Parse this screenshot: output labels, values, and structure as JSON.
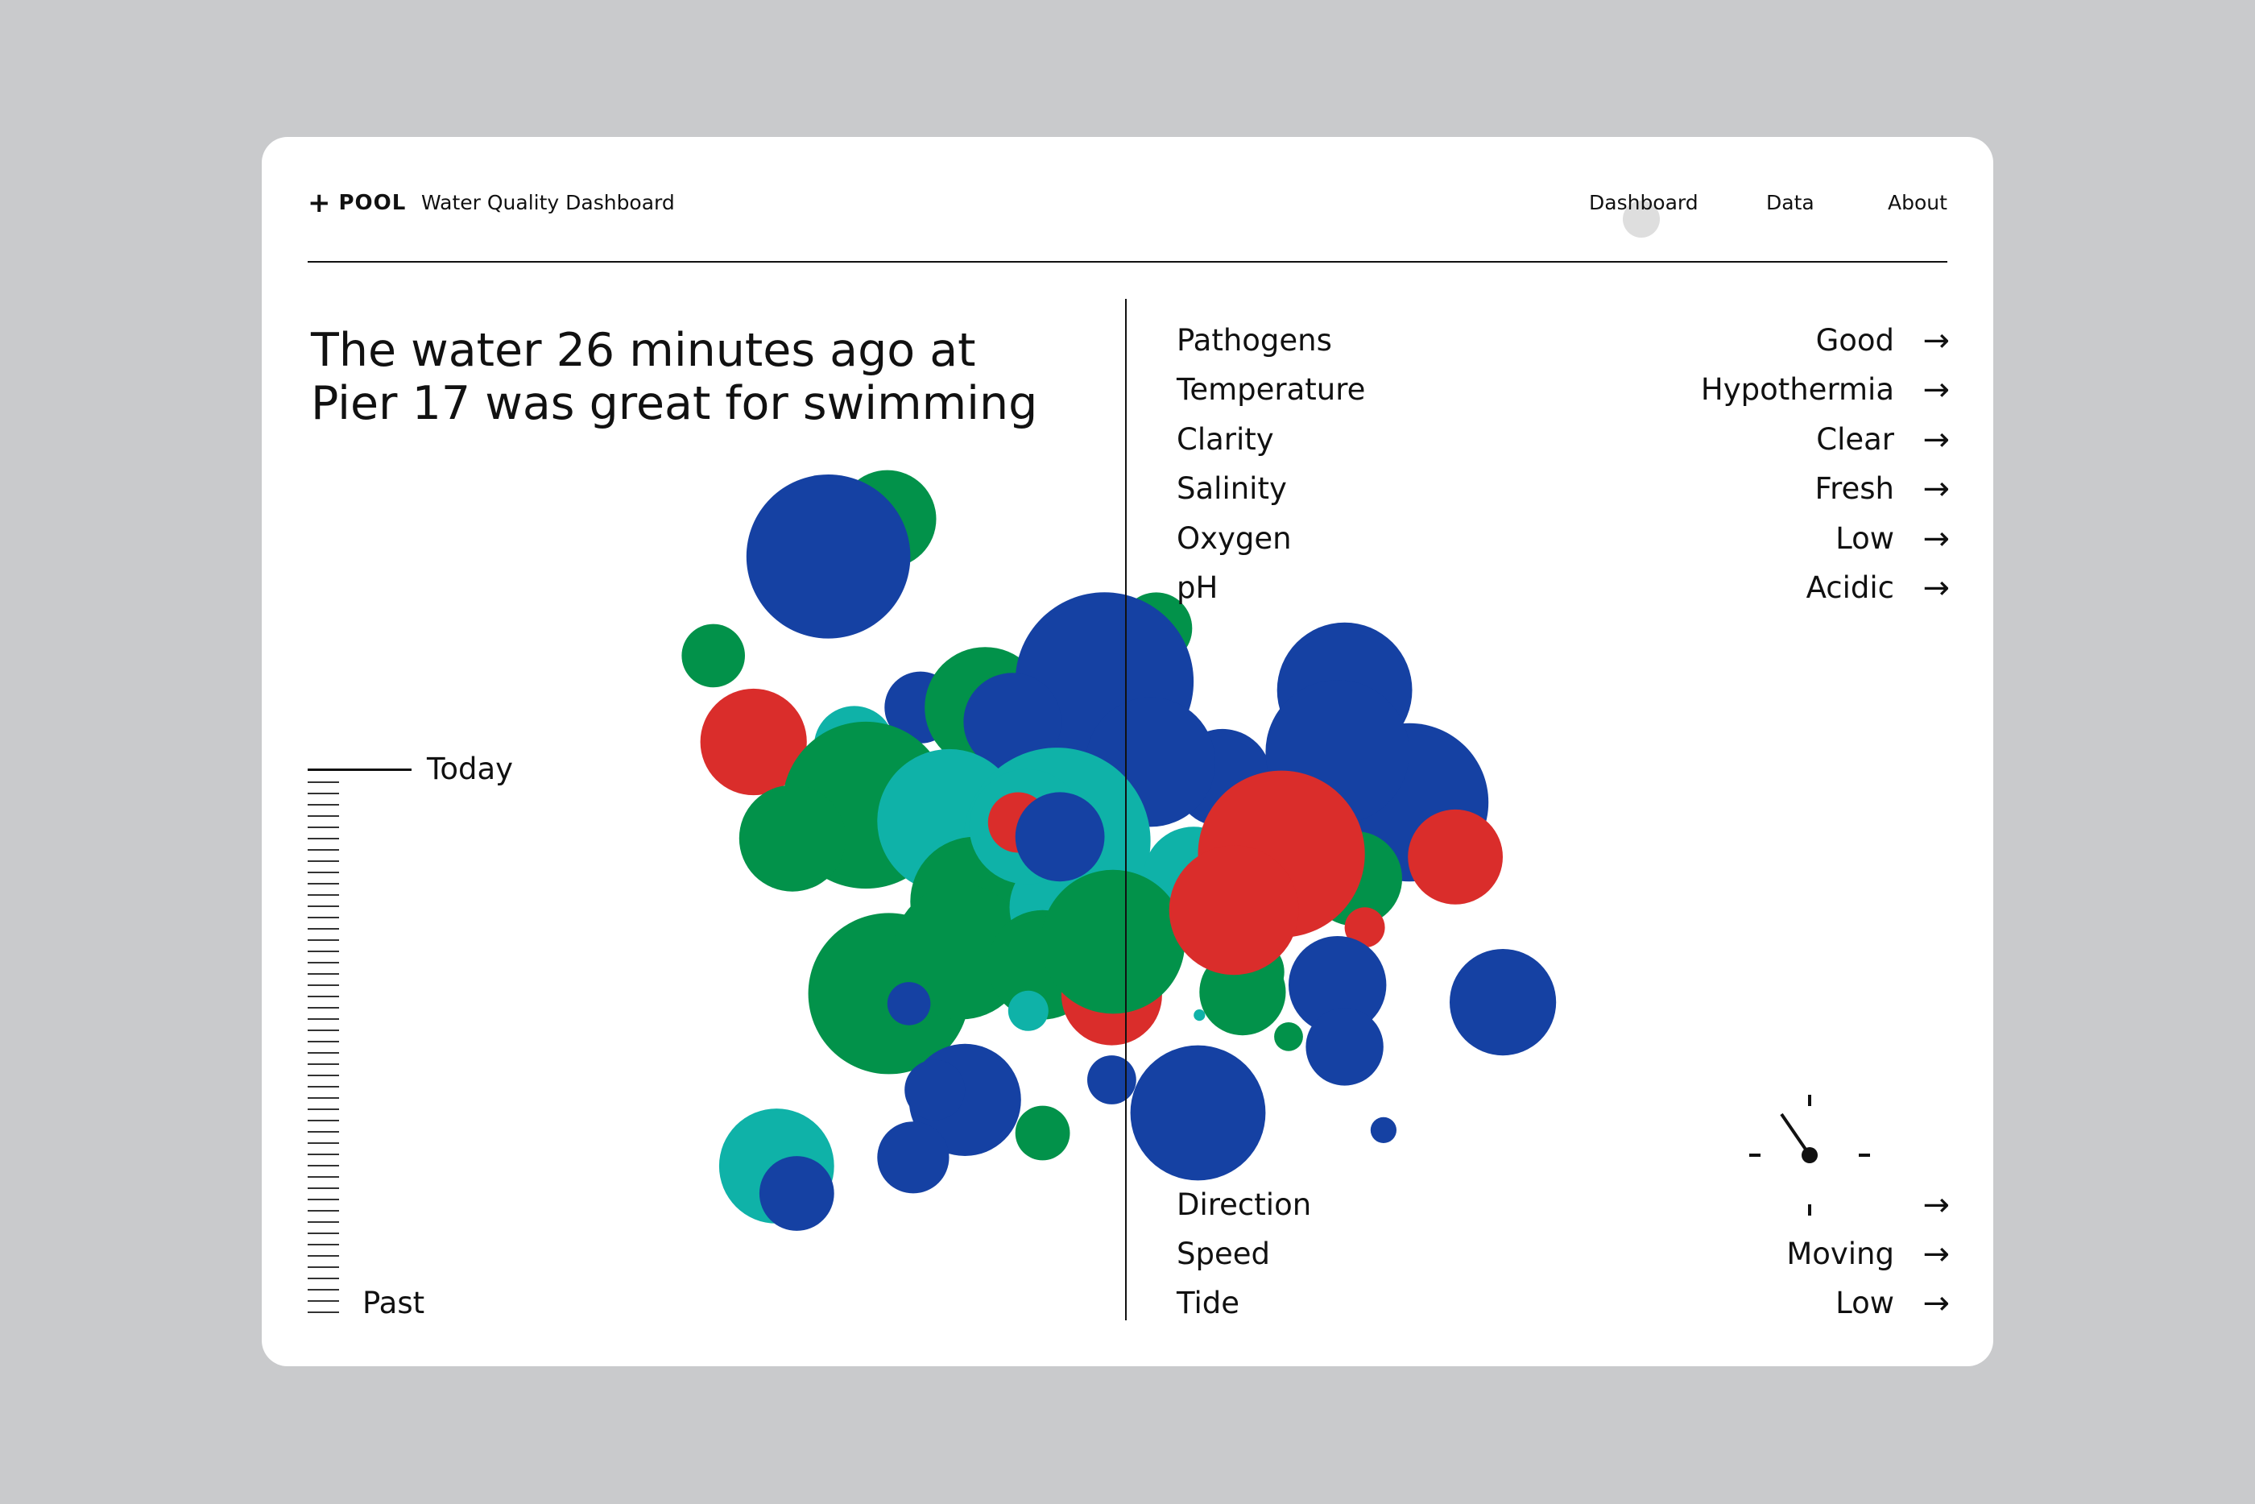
{
  "brand": {
    "symbol": "+",
    "name": "POOL",
    "subtitle": "Water Quality Dashboard"
  },
  "nav": {
    "items": [
      "Dashboard",
      "Data",
      "About"
    ],
    "active": "Dashboard"
  },
  "headline": {
    "line1": "The water 26 minutes ago at",
    "line2": "Pier 17 was great for swimming"
  },
  "metrics": [
    {
      "label": "Pathogens",
      "value": "Good"
    },
    {
      "label": "Temperature",
      "value": "Hypothermia"
    },
    {
      "label": "Clarity",
      "value": "Clear"
    },
    {
      "label": "Salinity",
      "value": "Fresh"
    },
    {
      "label": "Oxygen",
      "value": "Low"
    },
    {
      "label": "pH",
      "value": "Acidic"
    }
  ],
  "conditions": [
    {
      "label": "Direction",
      "value": ""
    },
    {
      "label": "Speed",
      "value": "Moving"
    },
    {
      "label": "Tide",
      "value": "Low"
    }
  ],
  "timeline": {
    "top_label": "Today",
    "bottom_label": "Past"
  },
  "arrow_glyph": "→",
  "colors": {
    "blue": "#1541a3",
    "green": "#02924a",
    "teal": "#0fb2a8",
    "red": "#da2d2b",
    "background": "#c9cacc",
    "card": "#ffffff",
    "text": "#111111",
    "nav_indicator": "#dedede"
  },
  "compass_icon": "direction-dial-icon"
}
